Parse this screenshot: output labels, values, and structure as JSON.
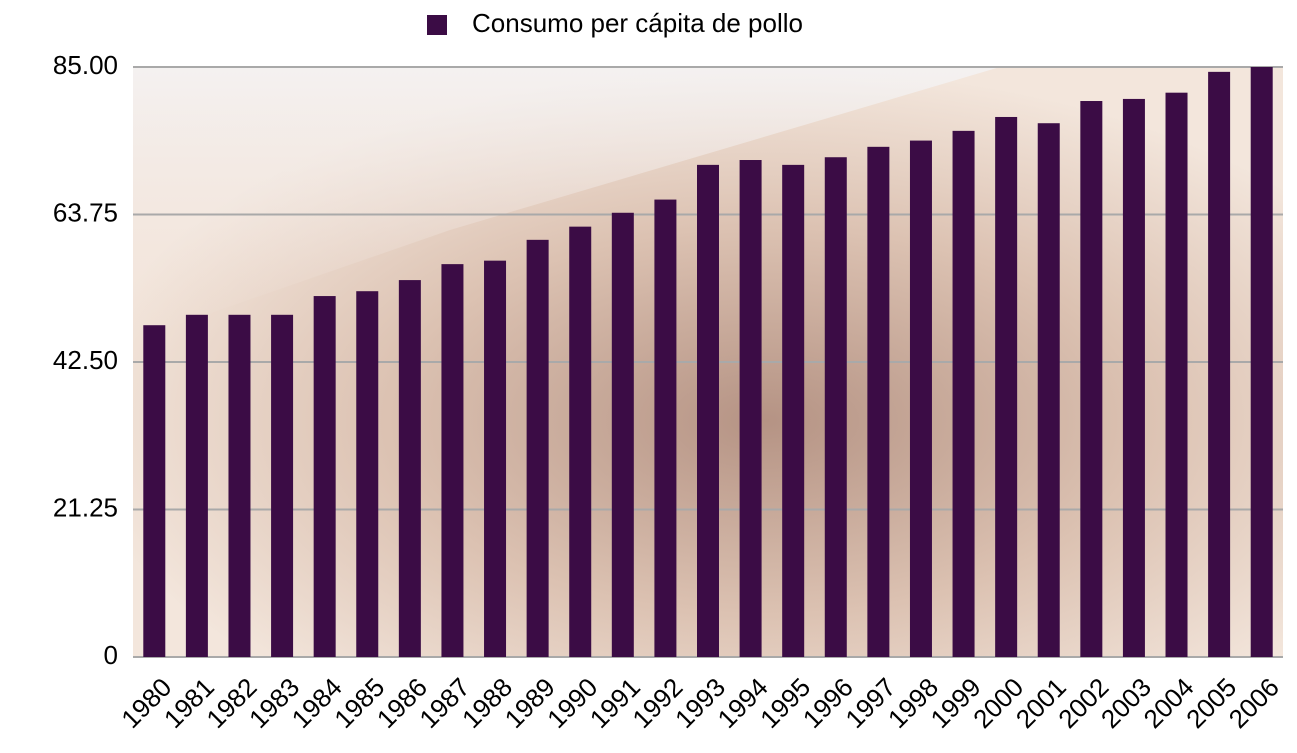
{
  "chart_data": {
    "type": "bar",
    "legend": "Consumo per cápita de pollo",
    "categories": [
      "1980",
      "1981",
      "1982",
      "1983",
      "1984",
      "1985",
      "1986",
      "1987",
      "1988",
      "1989",
      "1990",
      "1991",
      "1992",
      "1993",
      "1994",
      "1995",
      "1996",
      "1997",
      "1998",
      "1999",
      "2000",
      "2001",
      "2002",
      "2003",
      "2004",
      "2005",
      "2006"
    ],
    "values": [
      47.8,
      49.3,
      49.3,
      49.3,
      52.0,
      52.7,
      54.3,
      56.6,
      57.1,
      60.1,
      62.0,
      64.0,
      65.9,
      70.9,
      71.6,
      70.9,
      72.0,
      73.5,
      74.4,
      75.8,
      77.8,
      76.9,
      80.1,
      80.4,
      81.3,
      84.3,
      85.0
    ],
    "color": "#3b0c45",
    "ylim": [
      0,
      85
    ],
    "yticks": [
      0,
      {
        "value": 21.25,
        "label": "21.25"
      },
      {
        "value": 42.5,
        "label": "42.50"
      },
      {
        "value": 63.75,
        "label": "63.75"
      },
      {
        "value": 85,
        "label": "85.00"
      }
    ],
    "grid": true
  }
}
